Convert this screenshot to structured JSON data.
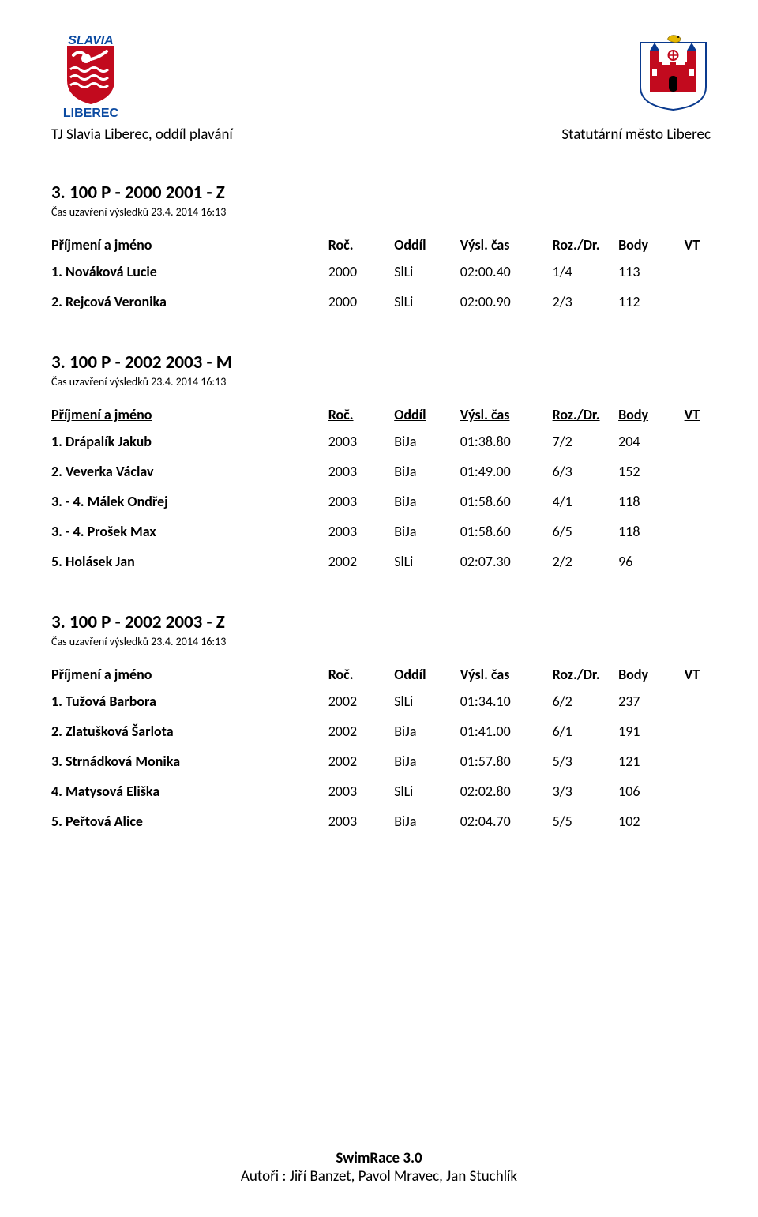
{
  "header": {
    "left_subtitle": "TJ Slavia Liberec, oddíl plavání",
    "right_subtitle": "Statutární město Liberec",
    "left_logo": {
      "name": "SLAVIA",
      "bottom": "LIBEREC",
      "color_bg": "#c20a1e",
      "color_blue": "#0b4aa1"
    }
  },
  "column_headers_underlined": {
    "name": "Příjmení a jméno",
    "year": "Roč.",
    "club": "Oddíl",
    "time": "Výsl. čas",
    "lane": "Roz./Dr.",
    "body": "Body",
    "vt": "VT"
  },
  "column_headers_plain": {
    "name": "Příjmení a jméno",
    "year": "Roč.",
    "club": "Oddíl",
    "time": "Výsl. čas",
    "lane": "Roz./Dr.",
    "body": "Body",
    "vt": "VT"
  },
  "sections": [
    {
      "title": "3. 100 P - 2000 2001 - Z",
      "sub": "Čas uzavření výsledků 23.4. 2014 16:13",
      "header_style": "plain",
      "rows": [
        {
          "name": "1. Nováková Lucie",
          "year": "2000",
          "club": "SlLi",
          "time": "02:00.40",
          "lane": "1/4",
          "body": "113",
          "vt": ""
        },
        {
          "name": "2. Rejcová Veronika",
          "year": "2000",
          "club": "SlLi",
          "time": "02:00.90",
          "lane": "2/3",
          "body": "112",
          "vt": ""
        }
      ]
    },
    {
      "title": "3. 100 P - 2002 2003 - M",
      "sub": "Čas uzavření výsledků 23.4. 2014 16:13",
      "header_style": "underlined",
      "rows": [
        {
          "name": "1. Drápalík Jakub",
          "year": "2003",
          "club": "BiJa",
          "time": "01:38.80",
          "lane": "7/2",
          "body": "204",
          "vt": ""
        },
        {
          "name": "2. Veverka Václav",
          "year": "2003",
          "club": "BiJa",
          "time": "01:49.00",
          "lane": "6/3",
          "body": "152",
          "vt": ""
        },
        {
          "name": "3. - 4. Málek Ondřej",
          "year": "2003",
          "club": "BiJa",
          "time": "01:58.60",
          "lane": "4/1",
          "body": "118",
          "vt": ""
        },
        {
          "name": "3. - 4. Prošek Max",
          "year": "2003",
          "club": "BiJa",
          "time": "01:58.60",
          "lane": "6/5",
          "body": "118",
          "vt": ""
        },
        {
          "name": "5. Holásek Jan",
          "year": "2002",
          "club": "SlLi",
          "time": "02:07.30",
          "lane": "2/2",
          "body": "96",
          "vt": ""
        }
      ]
    },
    {
      "title": "3. 100 P - 2002 2003 - Z",
      "sub": "Čas uzavření výsledků 23.4. 2014 16:13",
      "header_style": "plain",
      "rows": [
        {
          "name": "1. Tužová Barbora",
          "year": "2002",
          "club": "SlLi",
          "time": "01:34.10",
          "lane": "6/2",
          "body": "237",
          "vt": ""
        },
        {
          "name": "2. Zlatušková Šarlota",
          "year": "2002",
          "club": "BiJa",
          "time": "01:41.00",
          "lane": "6/1",
          "body": "191",
          "vt": ""
        },
        {
          "name": "3. Strnádková Monika",
          "year": "2002",
          "club": "BiJa",
          "time": "01:57.80",
          "lane": "5/3",
          "body": "121",
          "vt": ""
        },
        {
          "name": "4. Matysová Eliška",
          "year": "2003",
          "club": "SlLi",
          "time": "02:02.80",
          "lane": "3/3",
          "body": "106",
          "vt": ""
        },
        {
          "name": "5. Peřtová Alice",
          "year": "2003",
          "club": "BiJa",
          "time": "02:04.70",
          "lane": "5/5",
          "body": "102",
          "vt": ""
        }
      ]
    }
  ],
  "footer": {
    "line1": "SwimRace 3.0",
    "line2": "Autoři : Jiří Banzet, Pavol Mravec, Jan Stuchlík"
  }
}
